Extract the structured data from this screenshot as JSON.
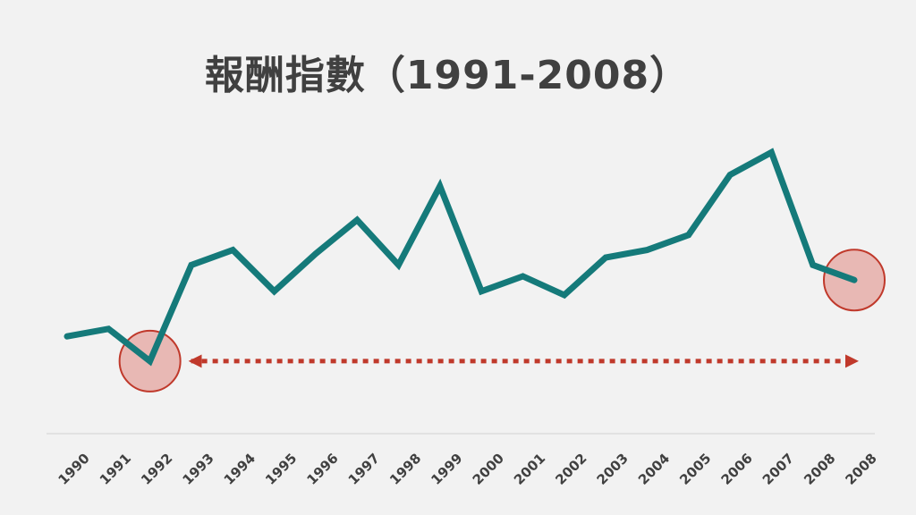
{
  "chart_data": {
    "type": "line",
    "title": "報酬指數（1991-2008）",
    "categories": [
      "1990",
      "1991",
      "1992",
      "1993",
      "1994",
      "1995",
      "1996",
      "1997",
      "1998",
      "1999",
      "2000",
      "2001",
      "2002",
      "2003",
      "2004",
      "2005",
      "2006",
      "2007",
      "2008",
      "2008"
    ],
    "series": [
      {
        "values": [
          0.95,
          1.05,
          0.62,
          1.9,
          2.1,
          1.55,
          2.05,
          2.5,
          1.9,
          2.95,
          1.55,
          1.75,
          1.5,
          2.0,
          2.1,
          2.3,
          3.1,
          3.4,
          1.9,
          1.7
        ]
      }
    ],
    "ylim": [
      0,
      4
    ],
    "grid": false,
    "colors": {
      "line": "#157a7a",
      "highlight": "#c0392b",
      "highlight_fill": "#e8b8b4",
      "axis": "#dddddd",
      "text": "#404040"
    },
    "annotations": {
      "highlight_points": [
        2,
        19
      ],
      "arrow": {
        "from_index": 2,
        "to_index": 19,
        "style": "dashed-double-arrow"
      }
    }
  }
}
